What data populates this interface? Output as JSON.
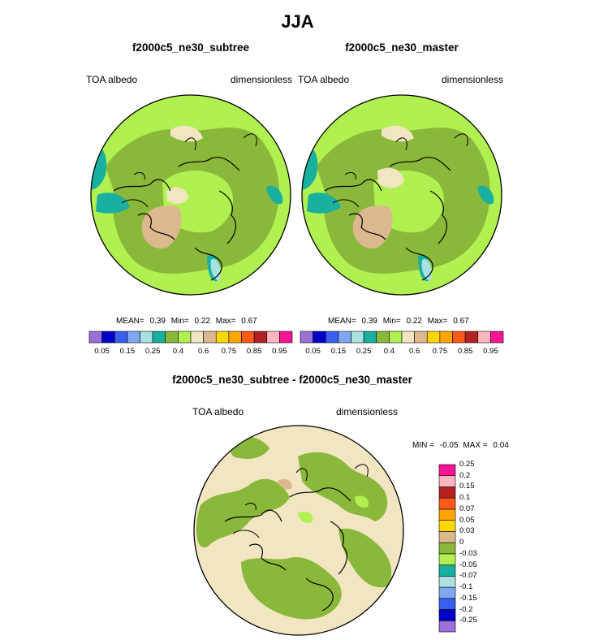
{
  "figure_title": "JJA",
  "colors": {
    "land_outline": "#000000",
    "background": "#ffffff"
  },
  "panels": [
    {
      "title": "f2000c5_ne30_subtree",
      "left_label": "TOA albedo",
      "right_label": "dimensionless",
      "stats": {
        "mean_label": "MEAN=",
        "mean": "0.39",
        "min_label": "Min=",
        "min": "0.22",
        "max_label": "Max=",
        "max": "0.67"
      }
    },
    {
      "title": "f2000c5_ne30_master",
      "left_label": "TOA albedo",
      "right_label": "dimensionless",
      "stats": {
        "mean_label": "MEAN=",
        "mean": "0.39",
        "min_label": "Min=",
        "min": "0.22",
        "max_label": "Max=",
        "max": "0.67"
      }
    }
  ],
  "diff_panel": {
    "title": "f2000c5_ne30_subtree - f2000c5_ne30_master",
    "left_label": "TOA albedo",
    "right_label": "dimensionless",
    "stats": {
      "min_label": "MIN =",
      "min": "-0.05",
      "max_label": "MAX =",
      "max": "0.04"
    }
  },
  "chart_data": [
    {
      "type": "heatmap",
      "title": "f2000c5_ne30_subtree",
      "projection": "north polar stereographic",
      "variable": "TOA albedo",
      "units": "dimensionless",
      "mean": 0.39,
      "min": 0.22,
      "max": 0.67,
      "colorbar": {
        "colors": [
          "#9b6fd8",
          "#0000c8",
          "#3a5ff0",
          "#7fa6f0",
          "#a9e0e0",
          "#19b0a0",
          "#8ab83a",
          "#b0f050",
          "#f2e6c2",
          "#dcb88e",
          "#ffd700",
          "#ffa500",
          "#ff5a1a",
          "#b22222",
          "#ffb6c1",
          "#ff1493"
        ],
        "tick_labels": [
          "0.05",
          "0.15",
          "0.25",
          "0.4",
          "0.6",
          "0.75",
          "0.85",
          "0.95"
        ],
        "tick_values": [
          0.05,
          0.15,
          0.25,
          0.4,
          0.6,
          0.75,
          0.85,
          0.95
        ]
      }
    },
    {
      "type": "heatmap",
      "title": "f2000c5_ne30_master",
      "projection": "north polar stereographic",
      "variable": "TOA albedo",
      "units": "dimensionless",
      "mean": 0.39,
      "min": 0.22,
      "max": 0.67,
      "colorbar": {
        "colors": [
          "#9b6fd8",
          "#0000c8",
          "#3a5ff0",
          "#7fa6f0",
          "#a9e0e0",
          "#19b0a0",
          "#8ab83a",
          "#b0f050",
          "#f2e6c2",
          "#dcb88e",
          "#ffd700",
          "#ffa500",
          "#ff5a1a",
          "#b22222",
          "#ffb6c1",
          "#ff1493"
        ],
        "tick_labels": [
          "0.05",
          "0.15",
          "0.25",
          "0.4",
          "0.6",
          "0.75",
          "0.85",
          "0.95"
        ],
        "tick_values": [
          0.05,
          0.15,
          0.25,
          0.4,
          0.6,
          0.75,
          0.85,
          0.95
        ]
      }
    },
    {
      "type": "heatmap",
      "title": "f2000c5_ne30_subtree - f2000c5_ne30_master",
      "projection": "north polar stereographic",
      "variable": "TOA albedo",
      "units": "dimensionless",
      "min": -0.05,
      "max": 0.04,
      "colorbar": {
        "orientation": "vertical",
        "colors_bottom_to_top": [
          "#9b6fd8",
          "#0000c8",
          "#3a5ff0",
          "#7fa6f0",
          "#a9e0e0",
          "#19b0a0",
          "#b0f050",
          "#8ab83a",
          "#dcb88e",
          "#ffd700",
          "#ffa500",
          "#ff5a1a",
          "#b22222",
          "#ffb6c1",
          "#ff1493"
        ],
        "tick_labels_bottom_to_top": [
          "-0.25",
          "-0.2",
          "-0.15",
          "-0.1",
          "-0.07",
          "-0.05",
          "-0.03",
          "0",
          "0.03",
          "0.05",
          "0.07",
          "0.1",
          "0.15",
          "0.2",
          "0.25"
        ]
      }
    }
  ]
}
